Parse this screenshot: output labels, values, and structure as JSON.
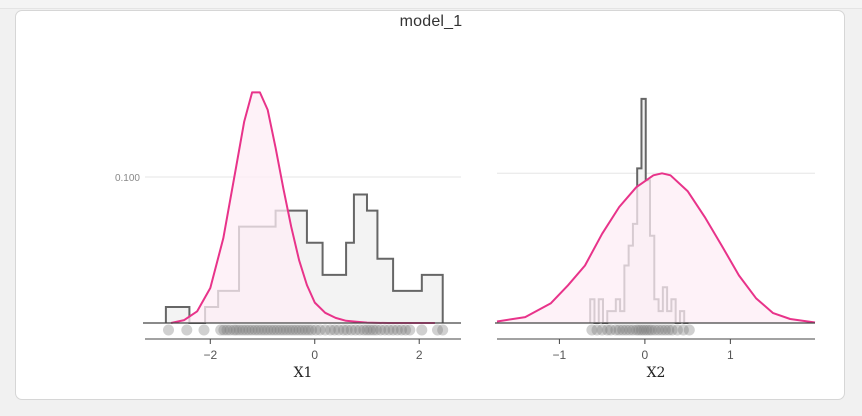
{
  "title": "model_1",
  "colors": {
    "density_line": "#e8338a",
    "density_fill": "#fdeef6",
    "hist_line": "#666666",
    "hist_fill": "#f3f3f3",
    "rug_point": "#777777",
    "gridline": "#e6e6e6",
    "axis": "#444444"
  },
  "chart_data": [
    {
      "type": "histogram",
      "xlabel": "X1",
      "x_ticks": [
        "-2",
        "0",
        "2"
      ],
      "y_ticks": [
        "0.100"
      ],
      "xlim": [
        -3.25,
        2.8
      ],
      "ylim": [
        0,
        0.161
      ],
      "grid": true,
      "histogram": {
        "bin_edges": [
          -2.85,
          -2.4,
          -2.1,
          -1.85,
          -1.45,
          -0.75,
          -0.15,
          0.15,
          0.6,
          0.75,
          1.0,
          1.2,
          1.5,
          2.05,
          2.45
        ],
        "densities": [
          0.011,
          0.0,
          0.011,
          0.022,
          0.066,
          0.077,
          0.055,
          0.033,
          0.055,
          0.088,
          0.077,
          0.044,
          0.022,
          0.033
        ]
      },
      "density_curve": {
        "x": [
          -2.75,
          -2.5,
          -2.25,
          -2.0,
          -1.75,
          -1.5,
          -1.35,
          -1.2,
          -1.05,
          -0.9,
          -0.75,
          -0.6,
          -0.45,
          -0.3,
          -0.15,
          0.0,
          0.2,
          0.4,
          0.6,
          0.8,
          1.0,
          1.2,
          1.4,
          1.7,
          2.0,
          2.3
        ],
        "y": [
          0.0,
          0.002,
          0.008,
          0.024,
          0.058,
          0.108,
          0.138,
          0.158,
          0.158,
          0.146,
          0.12,
          0.092,
          0.066,
          0.043,
          0.026,
          0.014,
          0.007,
          0.0035,
          0.0015,
          0.0008,
          0.0003,
          0.0001,
          0.0,
          0.0,
          0.0,
          0.0
        ]
      },
      "rug": [
        -2.8,
        -2.45,
        -2.12,
        -1.8,
        -1.74,
        -1.68,
        -1.62,
        -1.55,
        -1.5,
        -1.44,
        -1.38,
        -1.32,
        -1.26,
        -1.2,
        -1.14,
        -1.08,
        -1.02,
        -0.96,
        -0.9,
        -0.84,
        -0.78,
        -0.72,
        -0.66,
        -0.6,
        -0.54,
        -0.48,
        -0.42,
        -0.36,
        -0.3,
        -0.24,
        -0.18,
        -0.12,
        -0.06,
        0.02,
        0.1,
        0.2,
        0.3,
        0.38,
        0.46,
        0.55,
        0.62,
        0.7,
        0.78,
        0.86,
        0.94,
        1.0,
        1.06,
        1.12,
        1.18,
        1.26,
        1.34,
        1.42,
        1.5,
        1.58,
        1.66,
        1.74,
        1.82,
        2.05,
        2.35,
        2.45
      ]
    },
    {
      "type": "histogram",
      "xlabel": "X2",
      "x_ticks": [
        "-1",
        "0",
        "1"
      ],
      "xlim": [
        -1.73,
        1.99
      ],
      "ylim": [
        0,
        0.237
      ],
      "grid": true,
      "histogram": {
        "bin_edges": [
          -0.64,
          -0.59,
          -0.54,
          -0.49,
          -0.44,
          -0.39,
          -0.34,
          -0.29,
          -0.24,
          -0.19,
          -0.14,
          -0.09,
          -0.04,
          0.01,
          0.06,
          0.11,
          0.16,
          0.21,
          0.26,
          0.31,
          0.36,
          0.41,
          0.46,
          0.51
        ],
        "densities": [
          0.024,
          0.0,
          0.024,
          0.0,
          0.012,
          0.012,
          0.024,
          0.012,
          0.058,
          0.078,
          0.1,
          0.156,
          0.226,
          0.144,
          0.088,
          0.024,
          0.012,
          0.036,
          0.012,
          0.024,
          0.0,
          0.012,
          0.0
        ]
      },
      "density_curve": {
        "x": [
          -1.73,
          -1.4,
          -1.1,
          -0.9,
          -0.7,
          -0.5,
          -0.3,
          -0.1,
          0.1,
          0.2,
          0.3,
          0.5,
          0.7,
          0.9,
          1.1,
          1.3,
          1.5,
          1.7,
          1.99
        ],
        "y": [
          0.0015,
          0.006,
          0.02,
          0.038,
          0.058,
          0.09,
          0.117,
          0.137,
          0.149,
          0.151,
          0.149,
          0.133,
          0.107,
          0.078,
          0.048,
          0.025,
          0.01,
          0.004,
          0.0005
        ]
      },
      "rug": [
        -0.62,
        -0.56,
        -0.5,
        -0.44,
        -0.4,
        -0.34,
        -0.3,
        -0.26,
        -0.22,
        -0.18,
        -0.14,
        -0.1,
        -0.07,
        -0.04,
        -0.01,
        0.02,
        0.05,
        0.08,
        0.12,
        0.16,
        0.2,
        0.24,
        0.28,
        0.32,
        0.38,
        0.45,
        0.52
      ]
    }
  ]
}
